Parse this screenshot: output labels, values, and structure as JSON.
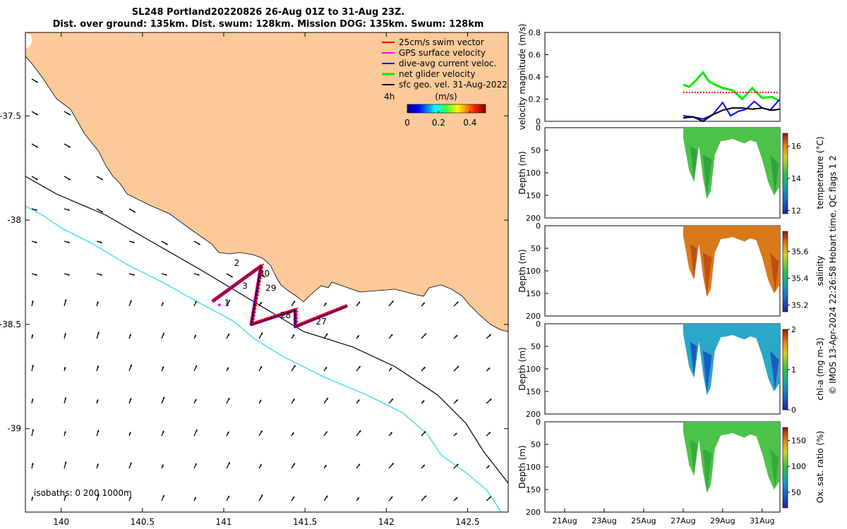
{
  "title": {
    "line1": "SL248 Portland20220826 26-Aug 01Z to 31-Aug 23Z.",
    "line2": "Dist. over ground: 135km. Dist. swum: 128km. Mission DOG: 135km. Swum: 128km"
  },
  "side_caption": "© IMOS 13-Apr-2024 22:26:58 Hobart time. QC flags 1  2",
  "colors": {
    "land": "#fcc999",
    "isobath200": "#000000",
    "isobath1000": "#33dde8",
    "swim": "#ff0000",
    "gps": "#ff00ff",
    "current": "#0000ff",
    "net": "#00ee00",
    "geo": "#000000"
  },
  "chart_data": [
    {
      "type": "map",
      "xlim": [
        139.78,
        142.75
      ],
      "ylim": [
        -39.4,
        -37.1
      ],
      "x_ticks": [
        "140",
        "140.5",
        "141",
        "141.5",
        "142",
        "142.5"
      ],
      "y_ticks": [
        "-37.5",
        "-38",
        "-38.5",
        "-39"
      ],
      "legend": {
        "position": "top-right",
        "entries": [
          {
            "key": "swim",
            "label": "25cm/s swim vector"
          },
          {
            "key": "gps",
            "label": "GPS surface velocity"
          },
          {
            "key": "current",
            "label": "dive-avg current veloc."
          },
          {
            "key": "net",
            "label": "net glider velocity"
          },
          {
            "key": "geo",
            "label": "sfc geo. vel. 31-Aug-2022"
          }
        ]
      },
      "colorbar": {
        "title": "(m/s)",
        "ticks": [
          "0",
          "0.2",
          "0.4"
        ],
        "range": [
          0,
          0.5
        ]
      },
      "interval_label": "4h",
      "isobaths_label": "isobaths: 0   200  1000m",
      "track": [
        [
          140.93,
          -38.39
        ],
        [
          141.23,
          -38.22
        ],
        [
          141.17,
          -38.5
        ],
        [
          141.44,
          -38.43
        ],
        [
          141.44,
          -38.51
        ],
        [
          141.76,
          -38.41
        ]
      ],
      "day_labels": [
        {
          "text": "2",
          "lon": 141.08,
          "lat": -38.22
        },
        {
          "text": "30",
          "lon": 141.25,
          "lat": -38.27
        },
        {
          "text": "3",
          "lon": 141.13,
          "lat": -38.33
        },
        {
          "text": "29",
          "lon": 141.29,
          "lat": -38.34
        },
        {
          "text": "1",
          "lon": 141.02,
          "lat": -38.41
        },
        {
          "text": "28",
          "lon": 141.38,
          "lat": -38.47
        },
        {
          "text": "27",
          "lon": 141.6,
          "lat": -38.5
        }
      ]
    },
    {
      "type": "line",
      "ylabel": "velocity magnitude (m/s)",
      "ylim": [
        0,
        0.8
      ],
      "y_ticks": [
        "0",
        "0.2",
        "0.4",
        "0.6",
        "0.8"
      ],
      "x_days": [
        20,
        31.9
      ],
      "series": [
        {
          "key": "net",
          "x": [
            27.0,
            27.3,
            27.6,
            28.0,
            28.3,
            28.6,
            29.0,
            29.5,
            30.0,
            30.5,
            31.0,
            31.5,
            31.9
          ],
          "values": [
            0.33,
            0.31,
            0.36,
            0.44,
            0.36,
            0.33,
            0.3,
            0.28,
            0.2,
            0.3,
            0.21,
            0.22,
            0.18
          ]
        },
        {
          "key": "current",
          "x": [
            27.0,
            27.5,
            28.0,
            28.5,
            29.0,
            29.4,
            29.8,
            30.2,
            30.6,
            31.0,
            31.4,
            31.9
          ],
          "values": [
            0.05,
            0.04,
            0.02,
            0.06,
            0.17,
            0.05,
            0.09,
            0.11,
            0.18,
            0.12,
            0.1,
            0.2
          ]
        },
        {
          "key": "geo",
          "x": [
            27.0,
            27.5,
            28.0,
            28.5,
            29.0,
            29.5,
            30.0,
            30.5,
            31.0,
            31.5,
            31.9
          ],
          "values": [
            0.03,
            0.04,
            0.0,
            0.06,
            0.1,
            0.12,
            0.12,
            0.11,
            0.12,
            0.1,
            0.11
          ]
        },
        {
          "key": "swim",
          "x": [
            27.0,
            31.9
          ],
          "values": [
            0.26,
            0.26
          ]
        }
      ]
    },
    {
      "type": "heatmap",
      "ylabel": "Depth (m)",
      "colorbar_label": "temperature (°C)",
      "colorbar_ticks": [
        "12",
        "14",
        "16"
      ],
      "colorbar_range": [
        11.8,
        16.8
      ],
      "y_ticks": [
        "0",
        "50",
        "100",
        "150",
        "200"
      ],
      "mean_value": 14.2
    },
    {
      "type": "heatmap",
      "ylabel": "Depth (m)",
      "colorbar_label": "salinity",
      "colorbar_ticks": [
        "35.2",
        "35.4",
        "35.6"
      ],
      "colorbar_range": [
        35.15,
        35.75
      ],
      "y_ticks": [
        "0",
        "50",
        "100",
        "150",
        "200"
      ],
      "mean_value": 35.62
    },
    {
      "type": "heatmap",
      "ylabel": "Depth (m)",
      "colorbar_label": "chl-a (mg m-3)",
      "colorbar_ticks": [
        "0",
        "1",
        "2"
      ],
      "colorbar_range": [
        0,
        2
      ],
      "y_ticks": [
        "0",
        "50",
        "100",
        "150",
        "200"
      ],
      "mean_value": 0.7
    },
    {
      "type": "heatmap",
      "ylabel": "Depth (m)",
      "colorbar_label": "Ox. sat. ratio (%)",
      "colorbar_ticks": [
        "50",
        "100",
        "150"
      ],
      "colorbar_range": [
        20,
        175
      ],
      "y_ticks": [
        "0",
        "50",
        "100",
        "150",
        "200"
      ],
      "mean_value": 100
    },
    {
      "type": "axis",
      "x_ticks": [
        "21Aug",
        "23Aug",
        "25Aug",
        "27Aug",
        "29Aug",
        "31Aug"
      ],
      "x_tick_days": [
        21,
        23,
        25,
        27,
        29,
        31
      ],
      "dive_profile": {
        "day": [
          27.0,
          27.3,
          27.55,
          27.8,
          28.0,
          28.2,
          28.4,
          28.6,
          28.9,
          29.2,
          29.5,
          29.8,
          30.1,
          30.4,
          30.7,
          31.0,
          31.3,
          31.6,
          31.9
        ],
        "max_depth": [
          22,
          95,
          120,
          40,
          110,
          158,
          140,
          60,
          30,
          28,
          25,
          30,
          35,
          28,
          32,
          70,
          120,
          150,
          130
        ]
      }
    }
  ]
}
